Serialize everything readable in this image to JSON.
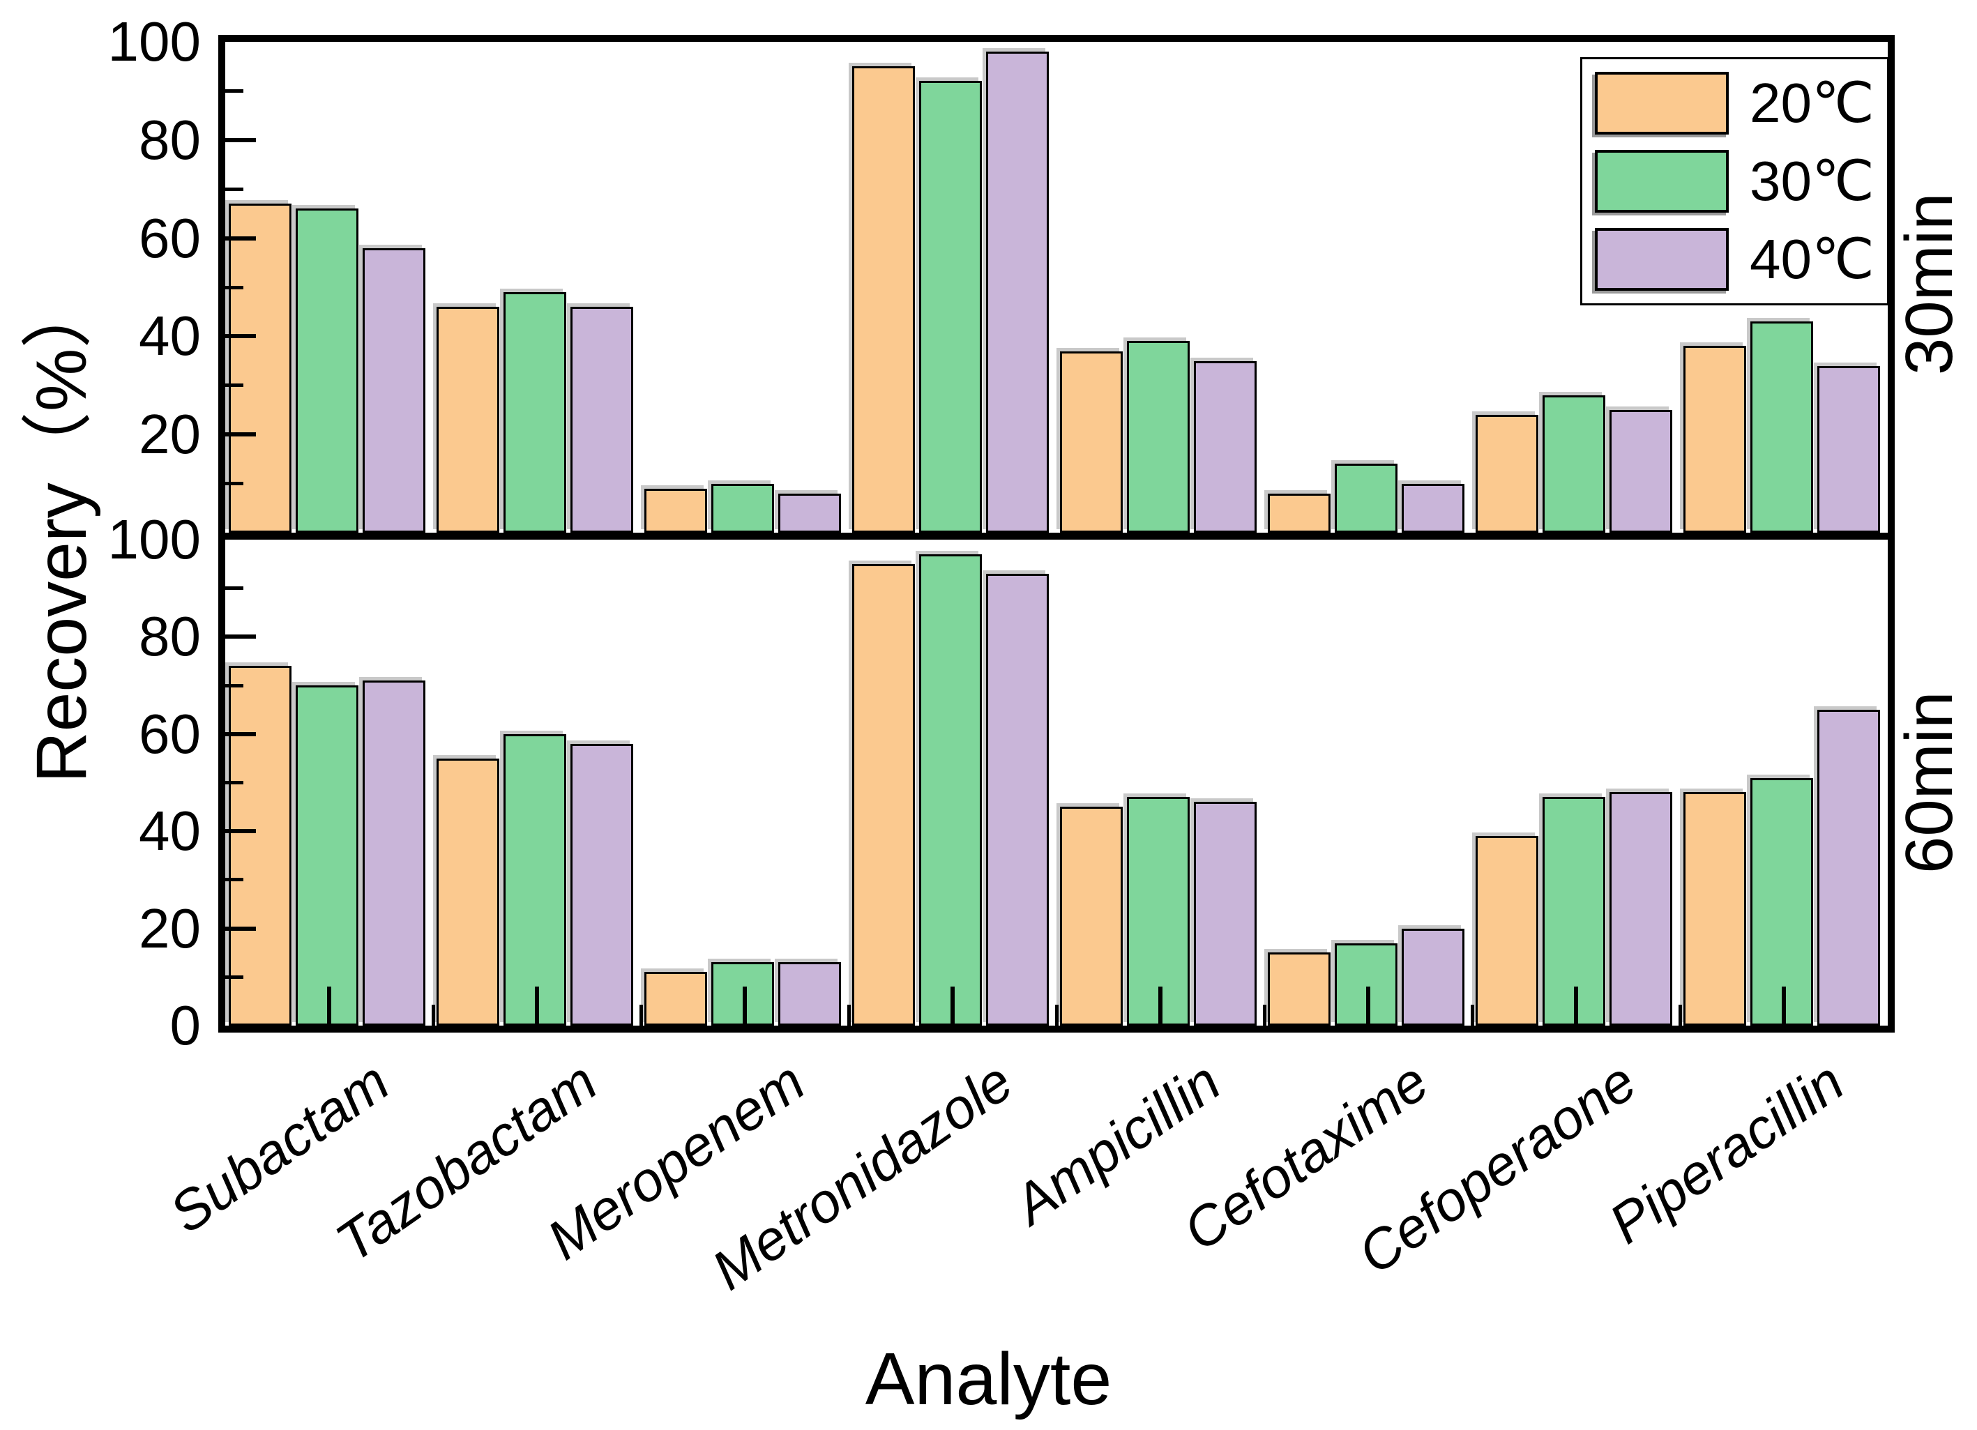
{
  "figure": {
    "background": "#ffffff",
    "axis_color": "#000000",
    "bar_edge_color": "#000000"
  },
  "y_axis": {
    "label": "Recovery（%）",
    "top_panel_tick_labels": [
      "100",
      "80",
      "60",
      "40",
      "20"
    ],
    "bottom_panel_tick_labels": [
      "100",
      "80",
      "60",
      "40",
      "20",
      "0"
    ]
  },
  "x_axis": {
    "label": "Analyte"
  },
  "legend": {
    "items": [
      {
        "label": "20℃",
        "color": "#FBC98F"
      },
      {
        "label": "30℃",
        "color": "#7FD69B"
      },
      {
        "label": "40℃",
        "color": "#C9B5D9"
      }
    ]
  },
  "panel_labels": {
    "top": "30min",
    "bottom": "60min"
  },
  "chart_data": {
    "type": "bar",
    "title": "",
    "xlabel": "Analyte",
    "ylabel": "Recovery（%）",
    "ylim": [
      0,
      100
    ],
    "yticks_major": [
      20,
      40,
      60,
      80
    ],
    "yticks_minor": [
      10,
      30,
      50,
      70,
      90
    ],
    "grid": false,
    "legend_position": "upper right",
    "categories": [
      "Subactam",
      "Tazobactam",
      "Meropenem",
      "Metronidazole",
      "Ampicillin",
      "Cefotaxime",
      "Cefoperaone",
      "Piperacillin"
    ],
    "panels": [
      {
        "name": "30min",
        "series": [
          {
            "name": "20℃",
            "color": "#FBC98F",
            "values": [
              67,
              46,
              9,
              95,
              37,
              8,
              24,
              38
            ]
          },
          {
            "name": "30℃",
            "color": "#7FD69B",
            "values": [
              66,
              49,
              10,
              92,
              39,
              14,
              28,
              43
            ]
          },
          {
            "name": "40℃",
            "color": "#C9B5D9",
            "values": [
              58,
              46,
              8,
              98,
              35,
              10,
              25,
              34
            ]
          }
        ]
      },
      {
        "name": "60min",
        "series": [
          {
            "name": "20℃",
            "color": "#FBC98F",
            "values": [
              74,
              55,
              11,
              95,
              45,
              15,
              39,
              48
            ]
          },
          {
            "name": "30℃",
            "color": "#7FD69B",
            "values": [
              70,
              60,
              13,
              97,
              47,
              17,
              47,
              51
            ]
          },
          {
            "name": "40℃",
            "color": "#C9B5D9",
            "values": [
              71,
              58,
              13,
              93,
              46,
              20,
              48,
              65
            ]
          }
        ]
      }
    ]
  }
}
